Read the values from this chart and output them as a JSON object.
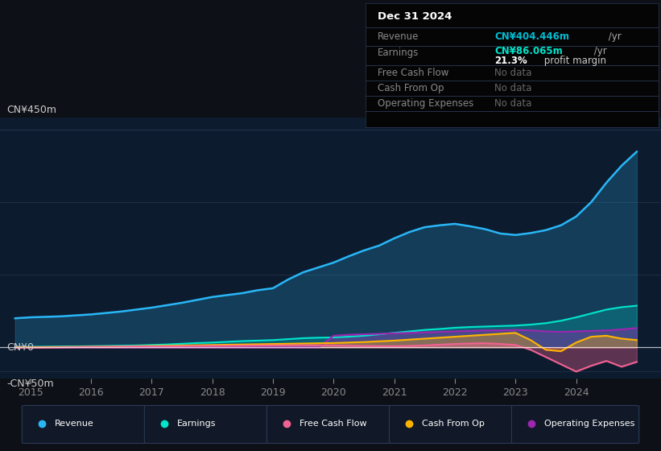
{
  "bg_color": "#0d1117",
  "plot_bg_color": "#0d1b2e",
  "ylim": [
    -65,
    475
  ],
  "xticks": [
    2015,
    2016,
    2017,
    2018,
    2019,
    2020,
    2021,
    2022,
    2023,
    2024
  ],
  "xlim_start": 2014.5,
  "xlim_end": 2025.4,
  "revenue_color": "#29b6f6",
  "earnings_color": "#00e5cc",
  "fcf_color": "#f06292",
  "cashfromop_color": "#ffb300",
  "opex_color": "#9c27b0",
  "legend_items": [
    {
      "label": "Revenue",
      "color": "#29b6f6"
    },
    {
      "label": "Earnings",
      "color": "#00e5cc"
    },
    {
      "label": "Free Cash Flow",
      "color": "#f06292"
    },
    {
      "label": "Cash From Op",
      "color": "#ffb300"
    },
    {
      "label": "Operating Expenses",
      "color": "#9c27b0"
    }
  ],
  "time": [
    2014.75,
    2015.0,
    2015.25,
    2015.5,
    2015.75,
    2016.0,
    2016.25,
    2016.5,
    2016.75,
    2017.0,
    2017.25,
    2017.5,
    2017.75,
    2018.0,
    2018.25,
    2018.5,
    2018.75,
    2019.0,
    2019.25,
    2019.5,
    2019.75,
    2020.0,
    2020.25,
    2020.5,
    2020.75,
    2021.0,
    2021.25,
    2021.5,
    2021.75,
    2022.0,
    2022.25,
    2022.5,
    2022.75,
    2023.0,
    2023.25,
    2023.5,
    2023.75,
    2024.0,
    2024.25,
    2024.5,
    2024.75,
    2025.0
  ],
  "rev_data": [
    60,
    62,
    63,
    64,
    66,
    68,
    71,
    74,
    78,
    82,
    87,
    92,
    98,
    104,
    108,
    112,
    118,
    122,
    140,
    155,
    165,
    175,
    188,
    200,
    210,
    225,
    238,
    248,
    252,
    255,
    250,
    244,
    235,
    232,
    236,
    242,
    252,
    270,
    300,
    340,
    375,
    404
  ],
  "earn_data": [
    1.0,
    1.2,
    1.5,
    1.8,
    2.0,
    2.5,
    3.0,
    3.5,
    4.0,
    5.0,
    6.0,
    7.5,
    9.0,
    10.0,
    11.5,
    13.0,
    14.0,
    15.0,
    17.0,
    19.0,
    20.0,
    20.5,
    22.0,
    24.0,
    27.0,
    30.0,
    33.0,
    36.0,
    38.0,
    40.5,
    42.0,
    43.0,
    44.0,
    45.0,
    47.0,
    50.0,
    55.0,
    62.0,
    70.0,
    78.0,
    83.0,
    86.0
  ],
  "fcf_data": [
    -1,
    -0.8,
    -0.5,
    0,
    0.5,
    1,
    1.2,
    1.5,
    2,
    2,
    2.2,
    2.5,
    2.8,
    3,
    3.2,
    3.5,
    3.8,
    4,
    4.2,
    4.5,
    4.2,
    4,
    3.5,
    3.0,
    2.5,
    2.5,
    3.0,
    4.0,
    5.5,
    7.0,
    8.0,
    8.5,
    7.0,
    5.0,
    -5,
    -20,
    -35,
    -50,
    -38,
    -28,
    -40,
    -30
  ],
  "cop_data": [
    0,
    0.2,
    0.5,
    0.8,
    1.0,
    1.2,
    1.5,
    2.0,
    2.5,
    3.0,
    3.5,
    4.0,
    4.5,
    5.0,
    5.5,
    6.0,
    6.5,
    7.0,
    7.5,
    8.0,
    8.5,
    9.0,
    10.0,
    11.0,
    12.5,
    14.0,
    16.0,
    18.0,
    20.0,
    22.0,
    24.0,
    26.0,
    28.0,
    30.0,
    15.0,
    -5.0,
    -8.0,
    10.0,
    22.0,
    24.0,
    18.0,
    15.0
  ],
  "opex_data": [
    0,
    0,
    0,
    0,
    0,
    0,
    0,
    0,
    0,
    0,
    0,
    0,
    0,
    0,
    0,
    0,
    0,
    0,
    0,
    0,
    0,
    24,
    26,
    27,
    28,
    29,
    30,
    31,
    32,
    33,
    34,
    35,
    35,
    36,
    35,
    33,
    32,
    33,
    34,
    35,
    37,
    40
  ]
}
